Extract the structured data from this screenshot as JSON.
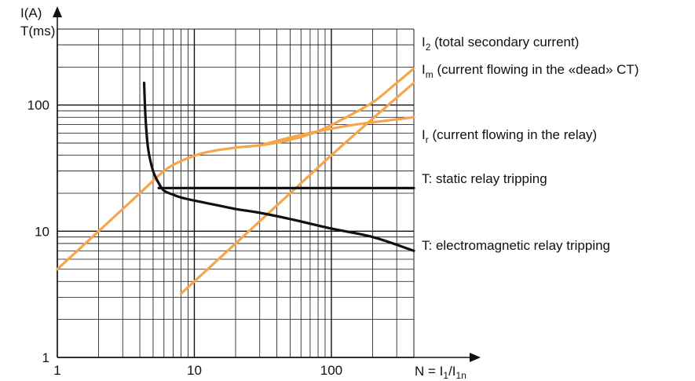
{
  "chart_data": {
    "type": "line",
    "x_scale": "log",
    "y_scale": "log",
    "xlim": [
      1,
      400
    ],
    "ylim": [
      1,
      400
    ],
    "grid": true,
    "x_ticks": [
      {
        "value": 1,
        "label": "1"
      },
      {
        "value": 10,
        "label": "10"
      },
      {
        "value": 100,
        "label": "100"
      }
    ],
    "y_ticks": [
      {
        "value": 1,
        "label": "1"
      },
      {
        "value": 10,
        "label": "10"
      },
      {
        "value": 100,
        "label": "100"
      }
    ],
    "y_label_line1": "I(A)",
    "y_label_line2": "T(ms)",
    "x_label_parts": {
      "prefix": "N = I",
      "sub1": "1",
      "mid": "/I",
      "sub2": "1n"
    },
    "series": [
      {
        "key": "i2",
        "label_main": "I",
        "label_sub": "2",
        "label_rest": " (total secondary current)",
        "color": "#F5A54A",
        "x": [
          1,
          2,
          4,
          6,
          8,
          12,
          20,
          30,
          50,
          80,
          120,
          200,
          300,
          400
        ],
        "y": [
          5,
          10,
          20,
          30,
          36,
          42,
          46,
          48,
          53,
          62,
          77,
          105,
          150,
          195
        ]
      },
      {
        "key": "im",
        "label_main": "I",
        "label_sub": "m",
        "label_rest": " (current flowing in the «dead» CT)",
        "color": "#F5A54A",
        "x": [
          8,
          20,
          50,
          100,
          200,
          400
        ],
        "y": [
          3.2,
          8,
          20,
          40,
          78,
          150
        ]
      },
      {
        "key": "ir",
        "label_main": "I",
        "label_sub": "r",
        "label_rest": " (current flowing in the relay)",
        "color": "#F5A54A",
        "x": [
          30,
          60,
          100,
          150,
          200,
          300,
          400
        ],
        "y": [
          48,
          58,
          65,
          70,
          73,
          77,
          80
        ]
      },
      {
        "key": "t_static",
        "label_main": "T: static relay tripping",
        "label_sub": "",
        "label_rest": "",
        "color": "#111111",
        "x": [
          5.5,
          400
        ],
        "y": [
          22,
          22
        ]
      },
      {
        "key": "t_em",
        "label_main": "T: electromagnetic relay tripping",
        "label_sub": "",
        "label_rest": "",
        "color": "#111111",
        "x": [
          4.3,
          4.4,
          4.6,
          5,
          5.5,
          6,
          7,
          8,
          10,
          15,
          20,
          30,
          50,
          100,
          200,
          400
        ],
        "y": [
          150,
          80,
          45,
          30,
          24,
          21,
          19.5,
          18.5,
          17.5,
          16,
          15,
          14,
          12.5,
          10.5,
          9,
          7
        ]
      }
    ]
  }
}
